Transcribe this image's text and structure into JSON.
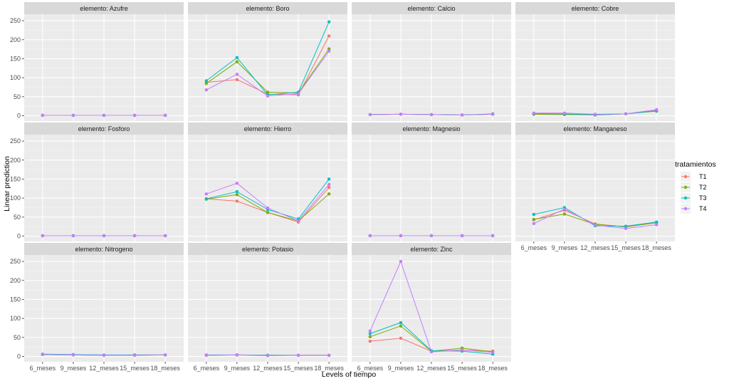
{
  "chart_data": {
    "type": "line",
    "facet_label_prefix": "elemento: ",
    "xlabel": "Levels of tiempo",
    "ylabel": "Linear prediction",
    "categories": [
      "6_meses",
      "9_meses",
      "12_meses",
      "15_meses",
      "18_meses"
    ],
    "ylim": [
      -14,
      267
    ],
    "yticks": [
      0,
      50,
      100,
      150,
      200,
      250
    ],
    "grid": true,
    "legend": {
      "title": "tratamientos",
      "position": "right",
      "entries": [
        "T1",
        "T2",
        "T3",
        "T4"
      ]
    },
    "colors": {
      "T1": "#F8766D",
      "T2": "#7CAE00",
      "T3": "#00BFC4",
      "T4": "#C77CFF"
    },
    "panels": [
      {
        "name": "Azufre",
        "series": [
          {
            "name": "T1",
            "values": [
              1,
              1,
              1,
              1,
              1
            ]
          },
          {
            "name": "T2",
            "values": [
              1,
              1,
              1,
              1,
              1
            ]
          },
          {
            "name": "T3",
            "values": [
              1,
              1,
              1,
              1,
              1
            ]
          },
          {
            "name": "T4",
            "values": [
              1,
              1,
              1,
              1,
              1
            ]
          }
        ]
      },
      {
        "name": "Boro",
        "series": [
          {
            "name": "T1",
            "values": [
              88,
              95,
              57,
              55,
              210
            ]
          },
          {
            "name": "T2",
            "values": [
              85,
              142,
              62,
              60,
              176
            ]
          },
          {
            "name": "T3",
            "values": [
              92,
              153,
              55,
              62,
              247
            ]
          },
          {
            "name": "T4",
            "values": [
              68,
              109,
              52,
              58,
              170
            ]
          }
        ]
      },
      {
        "name": "Calcio",
        "series": [
          {
            "name": "T1",
            "values": [
              3,
              4,
              3,
              2,
              4
            ]
          },
          {
            "name": "T2",
            "values": [
              3,
              4,
              3,
              2,
              4
            ]
          },
          {
            "name": "T3",
            "values": [
              3,
              4,
              3,
              2,
              5
            ]
          },
          {
            "name": "T4",
            "values": [
              3,
              4,
              3,
              2,
              4
            ]
          }
        ]
      },
      {
        "name": "Cobre",
        "series": [
          {
            "name": "T1",
            "values": [
              5,
              4,
              3,
              5,
              14
            ]
          },
          {
            "name": "T2",
            "values": [
              4,
              3,
              2,
              5,
              12
            ]
          },
          {
            "name": "T3",
            "values": [
              6,
              5,
              2,
              5,
              13
            ]
          },
          {
            "name": "T4",
            "values": [
              7,
              7,
              4,
              5,
              16
            ]
          }
        ]
      },
      {
        "name": "Fosforo",
        "series": [
          {
            "name": "T1",
            "values": [
              1,
              1,
              1,
              1,
              1
            ]
          },
          {
            "name": "T2",
            "values": [
              1,
              1,
              1,
              1,
              1
            ]
          },
          {
            "name": "T3",
            "values": [
              1,
              1,
              1,
              1,
              1
            ]
          },
          {
            "name": "T4",
            "values": [
              1,
              1,
              1,
              1,
              1
            ]
          }
        ]
      },
      {
        "name": "Hierro",
        "series": [
          {
            "name": "T1",
            "values": [
              98,
              92,
              62,
              37,
              128
            ]
          },
          {
            "name": "T2",
            "values": [
              97,
              109,
              62,
              40,
              111
            ]
          },
          {
            "name": "T3",
            "values": [
              98,
              117,
              70,
              45,
              150
            ]
          },
          {
            "name": "T4",
            "values": [
              111,
              139,
              74,
              40,
              136
            ]
          }
        ]
      },
      {
        "name": "Magnesio",
        "series": [
          {
            "name": "T1",
            "values": [
              1,
              1,
              1,
              1,
              1
            ]
          },
          {
            "name": "T2",
            "values": [
              1,
              1,
              1,
              1,
              1
            ]
          },
          {
            "name": "T3",
            "values": [
              1,
              1,
              1,
              1,
              1
            ]
          },
          {
            "name": "T4",
            "values": [
              1,
              1,
              1,
              1,
              1
            ]
          }
        ]
      },
      {
        "name": "Manganeso",
        "series": [
          {
            "name": "T1",
            "values": [
              43,
              68,
              32,
              24,
              35
            ]
          },
          {
            "name": "T2",
            "values": [
              44,
              58,
              31,
              25,
              35
            ]
          },
          {
            "name": "T3",
            "values": [
              57,
              75,
              27,
              26,
              37
            ]
          },
          {
            "name": "T4",
            "values": [
              33,
              71,
              29,
              20,
              30
            ]
          }
        ]
      },
      {
        "name": "Nitrogeno",
        "series": [
          {
            "name": "T1",
            "values": [
              5,
              4,
              3,
              3,
              4
            ]
          },
          {
            "name": "T2",
            "values": [
              5,
              4,
              3,
              4,
              4
            ]
          },
          {
            "name": "T3",
            "values": [
              6,
              5,
              4,
              4,
              4
            ]
          },
          {
            "name": "T4",
            "values": [
              5,
              4,
              3,
              3,
              4
            ]
          }
        ]
      },
      {
        "name": "Potasio",
        "series": [
          {
            "name": "T1",
            "values": [
              3,
              4,
              3,
              3,
              3
            ]
          },
          {
            "name": "T2",
            "values": [
              3,
              4,
              3,
              3,
              3
            ]
          },
          {
            "name": "T3",
            "values": [
              4,
              4,
              3,
              3,
              3
            ]
          },
          {
            "name": "T4",
            "values": [
              3,
              4,
              2,
              3,
              3
            ]
          }
        ]
      },
      {
        "name": "Zinc",
        "series": [
          {
            "name": "T1",
            "values": [
              40,
              48,
              14,
              17,
              14
            ]
          },
          {
            "name": "T2",
            "values": [
              52,
              80,
              14,
              22,
              12
            ]
          },
          {
            "name": "T3",
            "values": [
              60,
              89,
              15,
              14,
              6
            ]
          },
          {
            "name": "T4",
            "values": [
              67,
              250,
              12,
              17,
              11
            ]
          }
        ]
      }
    ]
  }
}
